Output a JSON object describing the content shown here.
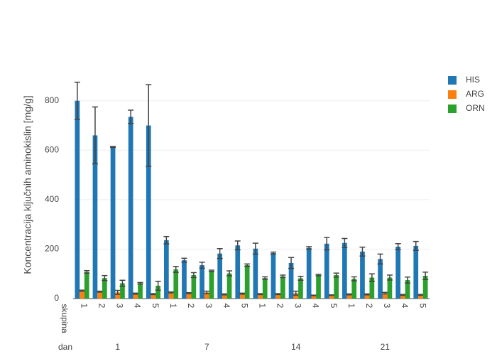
{
  "chart_data": {
    "type": "bar",
    "y_label": "Koncentracija ključnih aminokislin [mg/g]",
    "x_inner_label": "skupina",
    "x_outer_label": "dan",
    "groups": [
      {
        "name": "1",
        "categories": [
          "1",
          "2",
          "3",
          "4",
          "5"
        ]
      },
      {
        "name": "7",
        "categories": [
          "1",
          "2",
          "3",
          "4",
          "5"
        ]
      },
      {
        "name": "14",
        "categories": [
          "1",
          "2",
          "3",
          "4",
          "5"
        ]
      },
      {
        "name": "21",
        "categories": [
          "1",
          "2",
          "3",
          "4",
          "5"
        ]
      }
    ],
    "series": [
      {
        "name": "HIS",
        "color": "#1f77b4",
        "values": [
          800,
          660,
          613,
          735,
          700,
          236,
          155,
          135,
          182,
          215,
          202,
          184,
          144,
          205,
          222,
          225,
          190,
          160,
          210,
          213
        ],
        "errors": [
          75,
          115,
          2,
          27,
          165,
          15,
          8,
          12,
          20,
          18,
          22,
          4,
          22,
          5,
          25,
          18,
          18,
          20,
          12,
          18
        ]
      },
      {
        "name": "ARG",
        "color": "#ff7f0e",
        "values": [
          32,
          28,
          25,
          20,
          18,
          25,
          22,
          25,
          17,
          20,
          18,
          18,
          22,
          13,
          14,
          17,
          17,
          22,
          15,
          15
        ],
        "errors": [
          2,
          2,
          8,
          2,
          2,
          2,
          2,
          5,
          2,
          2,
          2,
          2,
          8,
          1,
          1,
          2,
          2,
          3,
          2,
          2
        ]
      },
      {
        "name": "ORN",
        "color": "#2ca02c",
        "values": [
          108,
          83,
          62,
          62,
          52,
          118,
          95,
          112,
          102,
          135,
          83,
          90,
          82,
          95,
          95,
          80,
          85,
          85,
          75,
          92
        ],
        "errors": [
          5,
          10,
          12,
          3,
          18,
          12,
          10,
          3,
          10,
          5,
          5,
          5,
          8,
          3,
          8,
          8,
          15,
          10,
          12,
          15
        ]
      }
    ],
    "ylim": [
      0,
      920
    ],
    "yticks": [
      0,
      200,
      400,
      600,
      800
    ],
    "grid": true
  }
}
